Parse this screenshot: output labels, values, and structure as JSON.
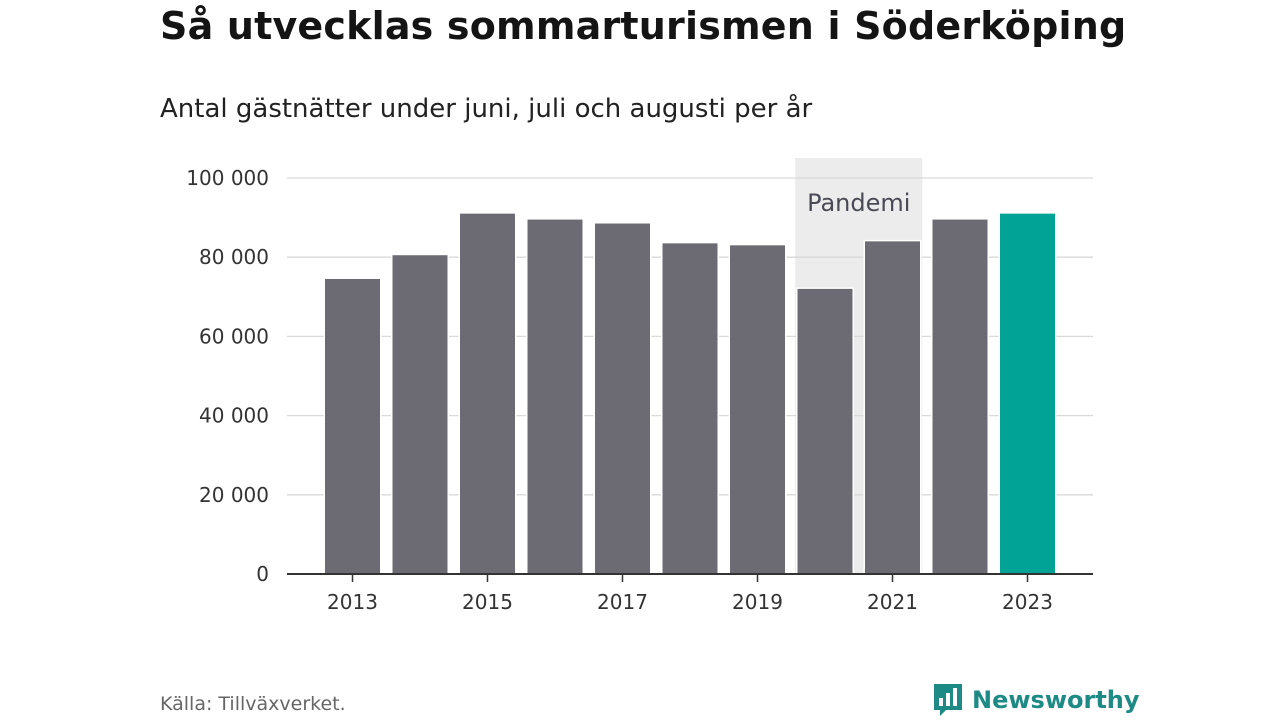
{
  "header": {
    "title": "Så utvecklas sommarturismen i Söderköping",
    "subtitle": "Antal gästnätter under juni, juli och augusti per år"
  },
  "footer": {
    "source": "Källa: Tillväxverket.",
    "brand": "Newsworthy"
  },
  "colors": {
    "bar": "#6c6b73",
    "highlight": "#00a396",
    "annotation_band": "#ececec",
    "grid": "#d9d9d9",
    "axis": "#333333",
    "brand": "#1e8a86"
  },
  "chart_data": {
    "type": "bar",
    "categories": [
      "2013",
      "2014",
      "2015",
      "2016",
      "2017",
      "2018",
      "2019",
      "2020",
      "2021",
      "2022",
      "2023"
    ],
    "values": [
      74500,
      80500,
      91000,
      89500,
      88500,
      83500,
      83000,
      72000,
      84000,
      89500,
      91000
    ],
    "highlight_category": "2023",
    "title": "Så utvecklas sommarturismen i Söderköping",
    "subtitle": "Antal gästnätter under juni, juli och augusti per år",
    "xlabel": "",
    "ylabel": "",
    "ylim": [
      0,
      100000
    ],
    "yticks": [
      0,
      20000,
      40000,
      60000,
      80000,
      100000
    ],
    "ytick_labels": [
      "0",
      "20 000",
      "40 000",
      "60 000",
      "80 000",
      "100 000"
    ],
    "xtick_labels": [
      "2013",
      "2015",
      "2017",
      "2019",
      "2021",
      "2023"
    ],
    "grid": true,
    "annotation": {
      "label": "Pandemi",
      "from": "2020",
      "to": "2021"
    }
  }
}
